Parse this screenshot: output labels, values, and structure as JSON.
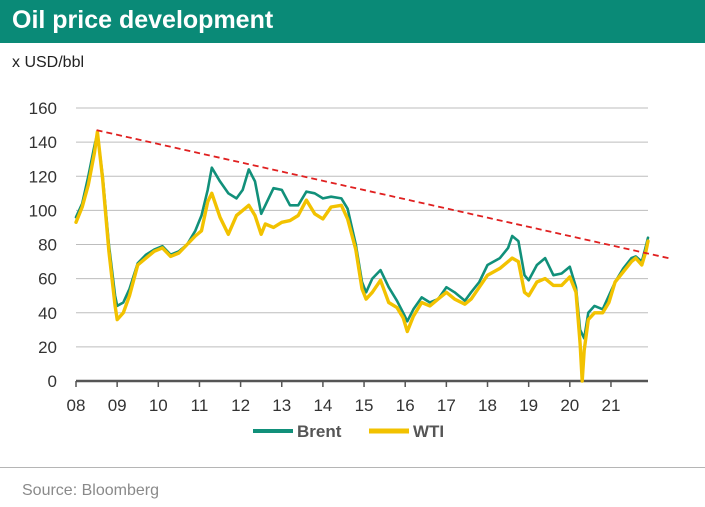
{
  "title": "Oil price development",
  "unit_label": "x USD/bbl",
  "source": "Source: Bloomberg",
  "colors": {
    "header_bg": "#0a8a77",
    "brent": "#11907a",
    "wti": "#f2c200",
    "trend": "#e02020",
    "grid": "#bdbdbd",
    "axis": "#555555"
  },
  "chart_data": {
    "type": "line",
    "title": "Oil price development",
    "xlabel": "",
    "ylabel": "x USD/bbl",
    "xlim": [
      2008.0,
      2021.9
    ],
    "ylim": [
      0,
      160
    ],
    "y_ticks": [
      0,
      20,
      40,
      60,
      80,
      100,
      120,
      140,
      160
    ],
    "x_ticks": [
      2008,
      2009,
      2010,
      2011,
      2012,
      2013,
      2014,
      2015,
      2016,
      2017,
      2018,
      2019,
      2020,
      2021
    ],
    "x_tick_labels": [
      "08",
      "09",
      "10",
      "11",
      "12",
      "13",
      "14",
      "15",
      "16",
      "17",
      "18",
      "19",
      "20",
      "21"
    ],
    "legend": {
      "position": "bottom",
      "entries": [
        "Brent",
        "WTI"
      ]
    },
    "series": [
      {
        "name": "Brent",
        "x": [
          2008.0,
          2008.15,
          2008.3,
          2008.45,
          2008.52,
          2008.65,
          2008.8,
          2008.95,
          2009.0,
          2009.15,
          2009.3,
          2009.5,
          2009.7,
          2009.9,
          2010.1,
          2010.3,
          2010.5,
          2010.7,
          2010.9,
          2011.05,
          2011.2,
          2011.3,
          2011.5,
          2011.7,
          2011.9,
          2012.05,
          2012.2,
          2012.35,
          2012.5,
          2012.6,
          2012.8,
          2013.0,
          2013.2,
          2013.4,
          2013.6,
          2013.8,
          2014.0,
          2014.2,
          2014.45,
          2014.6,
          2014.8,
          2014.95,
          2015.05,
          2015.2,
          2015.4,
          2015.6,
          2015.8,
          2015.95,
          2016.05,
          2016.2,
          2016.4,
          2016.6,
          2016.8,
          2017.0,
          2017.2,
          2017.45,
          2017.6,
          2017.8,
          2018.0,
          2018.3,
          2018.5,
          2018.6,
          2018.75,
          2018.9,
          2019.0,
          2019.2,
          2019.4,
          2019.6,
          2019.8,
          2020.0,
          2020.15,
          2020.25,
          2020.35,
          2020.45,
          2020.6,
          2020.8,
          2020.95,
          2021.1,
          2021.3,
          2021.5,
          2021.6,
          2021.75,
          2021.85,
          2021.9
        ],
        "values": [
          96,
          104,
          120,
          138,
          145,
          120,
          80,
          50,
          44,
          46,
          54,
          69,
          74,
          77,
          79,
          74,
          76,
          80,
          88,
          97,
          112,
          125,
          117,
          110,
          107,
          112,
          124,
          117,
          98,
          103,
          113,
          112,
          103,
          103,
          111,
          110,
          107,
          108,
          107,
          101,
          80,
          58,
          52,
          60,
          65,
          55,
          47,
          40,
          35,
          42,
          49,
          46,
          48,
          55,
          52,
          47,
          52,
          58,
          68,
          72,
          78,
          85,
          82,
          62,
          59,
          68,
          72,
          62,
          63,
          67,
          55,
          30,
          25,
          40,
          44,
          42,
          50,
          58,
          66,
          72,
          73,
          70,
          79,
          84
        ]
      },
      {
        "name": "WTI",
        "x": [
          2008.0,
          2008.15,
          2008.3,
          2008.45,
          2008.52,
          2008.65,
          2008.8,
          2008.95,
          2009.0,
          2009.15,
          2009.3,
          2009.5,
          2009.7,
          2009.9,
          2010.1,
          2010.3,
          2010.5,
          2010.7,
          2010.9,
          2011.05,
          2011.2,
          2011.3,
          2011.5,
          2011.7,
          2011.9,
          2012.05,
          2012.2,
          2012.35,
          2012.5,
          2012.6,
          2012.8,
          2013.0,
          2013.2,
          2013.4,
          2013.6,
          2013.8,
          2014.0,
          2014.2,
          2014.45,
          2014.6,
          2014.8,
          2014.95,
          2015.05,
          2015.2,
          2015.4,
          2015.6,
          2015.8,
          2015.95,
          2016.05,
          2016.2,
          2016.4,
          2016.6,
          2016.8,
          2017.0,
          2017.2,
          2017.45,
          2017.6,
          2017.8,
          2018.0,
          2018.3,
          2018.5,
          2018.6,
          2018.75,
          2018.9,
          2019.0,
          2019.2,
          2019.4,
          2019.6,
          2019.8,
          2020.0,
          2020.15,
          2020.25,
          2020.3,
          2020.35,
          2020.45,
          2020.6,
          2020.8,
          2020.95,
          2021.1,
          2021.3,
          2021.5,
          2021.6,
          2021.75,
          2021.85,
          2021.9
        ],
        "values": [
          93,
          102,
          115,
          134,
          146,
          118,
          76,
          44,
          36,
          40,
          50,
          68,
          72,
          76,
          78,
          73,
          75,
          80,
          85,
          88,
          105,
          110,
          96,
          86,
          97,
          100,
          103,
          97,
          86,
          92,
          90,
          93,
          94,
          97,
          106,
          98,
          95,
          102,
          103,
          95,
          77,
          54,
          48,
          52,
          59,
          46,
          43,
          37,
          29,
          38,
          46,
          44,
          48,
          52,
          48,
          45,
          48,
          55,
          62,
          66,
          70,
          72,
          70,
          52,
          50,
          58,
          60,
          56,
          56,
          61,
          52,
          22,
          0,
          18,
          36,
          40,
          40,
          46,
          58,
          64,
          70,
          72,
          68,
          76,
          82
        ]
      }
    ],
    "trend_line": {
      "name": "Trend",
      "x": [
        2008.5,
        2022.4
      ],
      "values": [
        147,
        72
      ]
    }
  }
}
